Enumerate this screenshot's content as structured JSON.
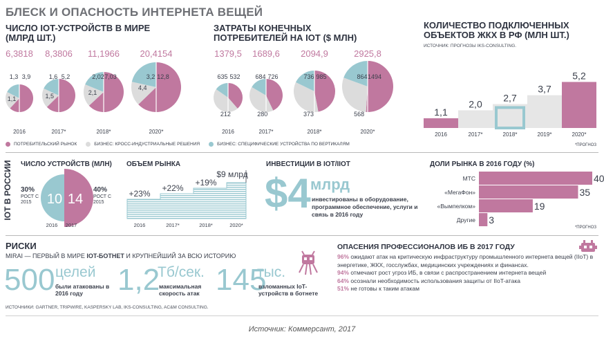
{
  "title": "БЛЕСК И ОПАСНОСТЬ ИНТЕРНЕТА ВЕЩЕЙ",
  "colors": {
    "pink": "#c0789f",
    "teal": "#99c8d0",
    "light": "#dcdcdc",
    "text": "#3a3f4b"
  },
  "legend": {
    "consumer": "ПОТРЕБИТЕЛЬСКИЙ РЫНОК",
    "business_cross": "БИЗНЕС: КРОСС-ИНДУСТРИАЛЬНЫЕ РЕШЕНИЯ",
    "business_vertical": "БИЗНЕС: СПЕЦИФИЧЕСКИЕ УСТРОЙСТВА ПО ВЕРТИКАЛЯМ"
  },
  "chart_data": [
    {
      "type": "pie",
      "title": "ЧИСЛО IOT-УСТРОЙСТВ В МИРЕ (МЛРД ШТ.)",
      "categories": [
        "2016",
        "2017*",
        "2018*",
        "2020*"
      ],
      "totals": [
        "6,3818",
        "8,3806",
        "11,1966",
        "20,4154"
      ],
      "series": [
        {
          "name": "БИЗНЕС: СПЕЦИФИЧЕСКИЕ УСТРОЙСТВА ПО ВЕРТИКАЛЯМ",
          "values": [
            1.1,
            1.5,
            2.1,
            4.4
          ],
          "labels": [
            "1,1",
            "1,5",
            "2,1",
            "4,4"
          ]
        },
        {
          "name": "БИЗНЕС: КРОСС-ИНДУСТРИАЛЬНЫЕ РЕШЕНИЯ",
          "values": [
            1.3,
            1.6,
            2.02,
            3.2
          ],
          "labels": [
            "1,3",
            "1,6",
            "2,02",
            "3,2"
          ]
        },
        {
          "name": "ПОТРЕБИТЕЛЬСКИЙ РЫНОК",
          "values": [
            3.9,
            5.2,
            7.03,
            12.8
          ],
          "labels": [
            "3,9",
            "5,2",
            "7,03",
            "12,8"
          ]
        }
      ]
    },
    {
      "type": "pie",
      "title": "ЗАТРАТЫ КОНЕЧНЫХ ПОТРЕБИТЕЛЕЙ НА IOT ($ МЛН)",
      "categories": [
        "2016",
        "2017*",
        "2018*",
        "2020*"
      ],
      "totals": [
        "1379,5",
        "1689,6",
        "2094,9",
        "2925,8"
      ],
      "series": [
        {
          "name": "БИЗНЕС: СПЕЦИФИЧЕСКИЕ УСТРОЙСТВА ПО ВЕРТИКАЛЯМ",
          "values": [
            212,
            280,
            373,
            568
          ],
          "labels": [
            "212",
            "280",
            "373",
            "568"
          ]
        },
        {
          "name": "БИЗНЕС: КРОСС-ИНДУСТРИАЛЬНЫЕ РЕШЕНИЯ",
          "values": [
            635,
            684,
            736,
            864
          ],
          "labels": [
            "635",
            "684",
            "736",
            "864"
          ]
        },
        {
          "name": "ПОТРЕБИТЕЛЬСКИЙ РЫНОК",
          "values": [
            532,
            726,
            985,
            1494
          ],
          "labels": [
            "532",
            "726",
            "985",
            "1494"
          ]
        }
      ]
    },
    {
      "type": "bar",
      "title": "КОЛИЧЕСТВО ПОДКЛЮЧЕННЫХ ОБЪЕКТОВ ЖКХ В РФ (МЛН ШТ.)",
      "subtitle": "ИСТОЧНИК: ПРОГНОЗЫ IKS-CONSULTING.",
      "categories": [
        "2016",
        "2017*",
        "2018*",
        "2019*",
        "2020*"
      ],
      "values": [
        1.1,
        2.0,
        2.7,
        3.7,
        5.2
      ],
      "labels": [
        "1,1",
        "2,0",
        "2,7",
        "3,7",
        "5,2"
      ],
      "note": "*ПРОГНОЗ"
    },
    {
      "type": "pie",
      "title": "ЧИСЛО УСТРОЙСТВ (МЛН)",
      "categories": [
        "2016",
        "2017"
      ],
      "values": [
        10,
        14
      ],
      "growth_left": {
        "pct": "30%",
        "text": "РОСТ С 2015"
      },
      "growth_right": {
        "pct": "40%",
        "text": "РОСТ С 2015"
      }
    },
    {
      "type": "area",
      "title": "ОБЪЕМ РЫНКА",
      "categories": [
        "2016",
        "2017*",
        "2018*",
        "2020*"
      ],
      "growth": [
        "+23%",
        "+22%",
        "+19%"
      ],
      "end_label": "$9 млрд"
    },
    {
      "type": "bar",
      "title": "ДОЛИ РЫНКА В 2016 ГОДУ (%)",
      "categories": [
        "МТС",
        "«МегаФон»",
        "«Вымпелком»",
        "Другие"
      ],
      "values": [
        40,
        35,
        19,
        3
      ],
      "labels": [
        "40",
        "35",
        "19",
        "3"
      ],
      "note": "*ПРОГНОЗ"
    }
  ],
  "russia": {
    "side_label": "IOT В РОССИИ",
    "investments_title": "ИНВЕСТИЦИИ В IOT/IIOT",
    "big_value": "$4",
    "unit": "млрд",
    "description": "инвестированы в оборудование, программное обеспечение, услуги и связь в 2016 году"
  },
  "risks": {
    "title": "РИСКИ",
    "subtitle_prefix": "MIRAI — ПЕРВЫЙ В МИРЕ",
    "subtitle_bold": "IOT-БОТНЕТ",
    "subtitle_suffix": "И КРУПНЕЙШИЙ ЗА ВСЮ ИСТОРИЮ",
    "stats": [
      {
        "big": "500",
        "unit": "целей",
        "text": "были атакованы в 2016 году"
      },
      {
        "big": "1,2",
        "unit": "Тб/сек.",
        "text": "максимальная скорость атак"
      },
      {
        "big": "145",
        "unit": "тыс.",
        "text": "взломанных IoT-устройств в ботнете"
      }
    ],
    "sources": "ИСТОЧНИКИ: GARTNER, TRIPWIRE, KASPERSKY LAB, IKS-CONSULTING, AC&M CONSULTING."
  },
  "fears": {
    "title": "ОПАСЕНИЯ ПРОФЕССИОНАЛОВ ИБ В 2017 ГОДУ",
    "items": [
      {
        "pct": "96%",
        "text": "ожидают атак на критическую инфраструктуру промышленного интернета вещей (IIoT) в энергетике, ЖКХ, госслужбах, медицинских учреждениях и финансах."
      },
      {
        "pct": "94%",
        "text": "отмечают рост угроз ИБ, в связи с распространением интернета вещей"
      },
      {
        "pct": "64%",
        "text": "осознали необходимость использования защиты от IIoT-атака"
      },
      {
        "pct": "51%",
        "text": "не готовы к таким атакам"
      }
    ]
  },
  "caption": "Источник: Коммерсант, 2017"
}
